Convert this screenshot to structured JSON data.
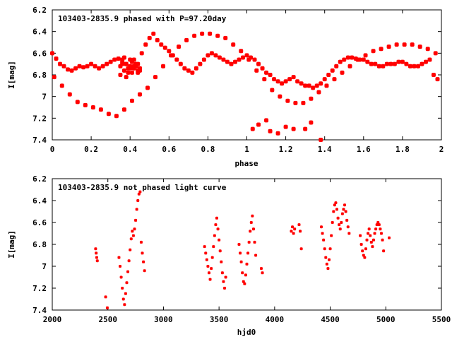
{
  "chart_data": [
    {
      "type": "scatter",
      "title": "103403-2835.9 phased with P=97.20day",
      "xlabel": "phase",
      "ylabel": "I[mag]",
      "xlim": [
        0,
        2
      ],
      "ylim": [
        7.4,
        6.2
      ],
      "y_inverted": true,
      "xticks": [
        "0",
        "0.2",
        "0.4",
        "0.6",
        "0.8",
        "1",
        "1.2",
        "1.4",
        "1.6",
        "1.8",
        "2"
      ],
      "yticks": [
        "6.2",
        "6.4",
        "6.6",
        "6.8",
        "7",
        "7.2",
        "7.4"
      ],
      "point_color": "#ff0000",
      "grid": false,
      "series": [
        {
          "x": [
            0.0,
            0.02,
            0.04,
            0.06,
            0.08,
            0.1,
            0.12,
            0.14,
            0.16,
            0.18,
            0.2,
            0.22,
            0.24,
            0.26,
            0.28,
            0.3,
            0.32,
            0.34,
            0.36,
            0.38,
            0.4,
            0.42,
            0.44,
            0.46,
            0.48,
            0.5,
            0.52,
            0.54,
            0.56,
            0.58,
            0.6,
            0.62,
            0.64,
            0.66,
            0.68,
            0.7,
            0.72,
            0.74,
            0.76,
            0.78,
            0.8,
            0.82,
            0.84,
            0.86,
            0.88,
            0.9,
            0.92,
            0.94,
            0.96,
            0.98,
            1.0,
            1.02,
            1.04,
            1.06,
            1.08,
            1.1,
            1.12,
            1.14,
            1.16,
            1.18,
            1.2,
            1.22,
            1.24,
            1.26,
            1.28,
            1.3,
            1.32,
            1.34,
            1.36,
            1.38,
            1.4,
            1.42,
            1.44,
            1.46,
            1.48,
            1.5,
            1.52,
            1.54,
            1.56,
            1.58,
            1.6,
            1.62,
            1.64,
            1.66,
            1.68,
            1.7,
            1.72,
            1.74,
            1.76,
            1.78,
            1.8,
            1.82,
            1.84,
            1.86,
            1.88,
            1.9,
            1.92,
            1.94,
            1.96,
            1.98,
            0.01,
            0.05,
            0.09,
            0.13,
            0.17,
            0.21,
            0.25,
            0.29,
            0.33,
            0.37,
            0.41,
            0.45,
            0.49,
            0.53,
            0.57,
            0.61,
            0.65,
            0.69,
            0.73,
            0.77,
            0.81,
            0.85,
            0.89,
            0.93,
            0.97,
            1.01,
            1.05,
            1.09,
            1.13,
            1.17,
            1.21,
            1.25,
            1.29,
            1.33,
            1.37,
            1.41,
            1.45,
            1.49,
            1.53,
            1.57,
            1.61,
            1.65,
            1.69,
            1.73,
            1.77,
            1.81,
            1.85,
            1.89,
            1.93,
            1.97,
            0.35,
            0.36,
            0.37,
            0.38,
            0.39,
            0.4,
            0.41,
            0.42,
            0.43,
            0.44,
            0.45,
            0.35,
            0.37,
            0.39,
            0.41,
            0.43,
            0.45,
            0.36,
            0.38,
            0.4,
            0.42,
            0.44,
            1.03,
            1.06,
            1.12,
            1.16,
            1.2,
            1.24,
            1.3,
            1.38,
            1.33,
            1.1
          ],
          "y": [
            6.6,
            6.65,
            6.7,
            6.72,
            6.75,
            6.76,
            6.74,
            6.72,
            6.73,
            6.72,
            6.7,
            6.72,
            6.74,
            6.72,
            6.7,
            6.68,
            6.66,
            6.65,
            6.66,
            6.7,
            6.72,
            6.74,
            6.7,
            6.6,
            6.52,
            6.46,
            6.42,
            6.48,
            6.52,
            6.55,
            6.58,
            6.62,
            6.66,
            6.7,
            6.74,
            6.76,
            6.78,
            6.74,
            6.7,
            6.66,
            6.62,
            6.6,
            6.62,
            6.64,
            6.66,
            6.68,
            6.7,
            6.68,
            6.66,
            6.64,
            6.62,
            6.64,
            6.66,
            6.7,
            6.74,
            6.78,
            6.8,
            6.84,
            6.86,
            6.88,
            6.86,
            6.84,
            6.82,
            6.86,
            6.88,
            6.9,
            6.9,
            6.92,
            6.9,
            6.88,
            6.84,
            6.8,
            6.76,
            6.72,
            6.68,
            6.66,
            6.64,
            6.64,
            6.65,
            6.66,
            6.66,
            6.68,
            6.7,
            6.7,
            6.72,
            6.72,
            6.7,
            6.7,
            6.7,
            6.68,
            6.68,
            6.7,
            6.72,
            6.72,
            6.72,
            6.7,
            6.68,
            6.66,
            6.8,
            6.84,
            6.82,
            6.9,
            6.98,
            7.05,
            7.08,
            7.1,
            7.12,
            7.16,
            7.18,
            7.12,
            7.04,
            6.98,
            6.92,
            6.82,
            6.72,
            6.62,
            6.54,
            6.48,
            6.44,
            6.42,
            6.42,
            6.44,
            6.46,
            6.52,
            6.58,
            6.66,
            6.76,
            6.84,
            6.94,
            7.0,
            7.04,
            7.06,
            7.06,
            7.02,
            6.96,
            6.9,
            6.84,
            6.78,
            6.72,
            6.66,
            6.62,
            6.58,
            6.56,
            6.54,
            6.52,
            6.52,
            6.52,
            6.54,
            6.56,
            6.6,
            6.72,
            6.68,
            6.76,
            6.7,
            6.74,
            6.66,
            6.78,
            6.72,
            6.7,
            6.76,
            6.74,
            6.8,
            6.64,
            6.78,
            6.68,
            6.72,
            6.76,
            6.7,
            6.82,
            6.74,
            6.66,
            6.78,
            7.3,
            7.26,
            7.32,
            7.34,
            7.28,
            7.3,
            7.3,
            7.4,
            7.24,
            7.22
          ]
        }
      ]
    },
    {
      "type": "scatter",
      "title": "103403-2835.9 not phased light curve",
      "xlabel": "hjd0",
      "ylabel": "I[mag]",
      "xlim": [
        2000,
        5500
      ],
      "ylim": [
        7.4,
        6.2
      ],
      "y_inverted": true,
      "xticks": [
        "2000",
        "2500",
        "3000",
        "3500",
        "4000",
        "4500",
        "5000",
        "5500"
      ],
      "yticks": [
        "6.2",
        "6.4",
        "6.6",
        "6.8",
        "7",
        "7.2",
        "7.4"
      ],
      "point_color": "#ff0000",
      "grid": false,
      "series": [
        {
          "x": [
            2390,
            2395,
            2400,
            2405,
            2480,
            2495,
            2600,
            2610,
            2620,
            2630,
            2640,
            2650,
            2660,
            2670,
            2680,
            2690,
            2700,
            2710,
            2720,
            2730,
            2740,
            2750,
            2760,
            2770,
            2780,
            2790,
            2800,
            2810,
            2820,
            2830,
            3370,
            3380,
            3390,
            3400,
            3410,
            3420,
            3430,
            3440,
            3450,
            3460,
            3470,
            3480,
            3490,
            3500,
            3510,
            3520,
            3530,
            3540,
            3550,
            3560,
            3680,
            3690,
            3700,
            3710,
            3720,
            3730,
            3740,
            3750,
            3760,
            3770,
            3780,
            3790,
            3800,
            3810,
            3820,
            3830,
            3880,
            3890,
            4150,
            4160,
            4170,
            4180,
            4220,
            4230,
            4240,
            4420,
            4430,
            4440,
            4450,
            4460,
            4470,
            4480,
            4490,
            4500,
            4510,
            4520,
            4530,
            4540,
            4550,
            4560,
            4570,
            4580,
            4590,
            4600,
            4610,
            4620,
            4630,
            4640,
            4650,
            4660,
            4670,
            4770,
            4780,
            4790,
            4800,
            4810,
            4820,
            4830,
            4840,
            4850,
            4860,
            4870,
            4880,
            4890,
            4900,
            4910,
            4920,
            4930,
            4940,
            4950,
            4960,
            4970,
            4980,
            5030
          ],
          "y": [
            6.84,
            6.88,
            6.92,
            6.95,
            7.28,
            7.38,
            6.92,
            7.0,
            7.1,
            7.2,
            7.3,
            7.35,
            7.25,
            7.15,
            7.05,
            6.95,
            6.85,
            6.75,
            6.68,
            6.72,
            6.66,
            6.58,
            6.48,
            6.4,
            6.34,
            6.32,
            6.78,
            6.88,
            6.96,
            7.04,
            6.82,
            6.88,
            6.94,
            7.0,
            7.06,
            7.12,
            7.02,
            6.92,
            6.82,
            6.72,
            6.62,
            6.56,
            6.66,
            6.76,
            6.86,
            6.96,
            7.06,
            7.14,
            7.2,
            7.1,
            6.8,
            6.88,
            6.96,
            7.06,
            7.14,
            7.16,
            7.08,
            6.98,
            6.88,
            6.78,
            6.68,
            6.6,
            6.54,
            6.66,
            6.78,
            6.9,
            7.02,
            7.06,
            6.68,
            6.64,
            6.7,
            6.66,
            6.62,
            6.68,
            6.84,
            6.64,
            6.7,
            6.76,
            6.84,
            6.92,
            6.98,
            7.02,
            6.94,
            6.84,
            6.72,
            6.6,
            6.5,
            6.44,
            6.42,
            6.48,
            6.56,
            6.62,
            6.66,
            6.6,
            6.52,
            6.48,
            6.44,
            6.5,
            6.58,
            6.64,
            6.7,
            6.72,
            6.8,
            6.86,
            6.9,
            6.92,
            6.84,
            6.76,
            6.7,
            6.66,
            6.72,
            6.78,
            6.82,
            6.76,
            6.7,
            6.66,
            6.62,
            6.6,
            6.62,
            6.66,
            6.7,
            6.76,
            6.86,
            6.74
          ]
        }
      ]
    }
  ]
}
